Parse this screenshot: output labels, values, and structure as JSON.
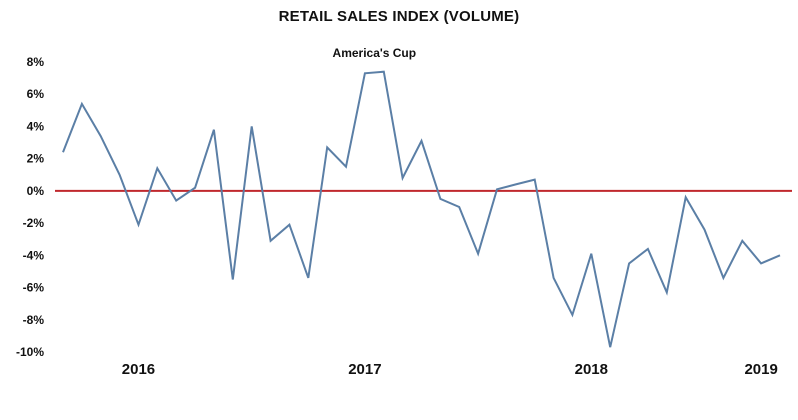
{
  "chart_data": {
    "type": "line",
    "title": "RETAIL SALES INDEX (VOLUME)",
    "xlabel": "",
    "ylabel": "",
    "ylim": [
      -10,
      8
    ],
    "y_ticks": [
      8,
      6,
      4,
      2,
      0,
      -2,
      -4,
      -6,
      -8,
      -10
    ],
    "y_tick_labels": [
      "8%",
      "6%",
      "4%",
      "2%",
      "0%",
      "-2%",
      "-4%",
      "-6%",
      "-8%",
      "-10%"
    ],
    "x_labels": [
      {
        "label": "2016",
        "index": 4
      },
      {
        "label": "2017",
        "index": 16
      },
      {
        "label": "2018",
        "index": 28
      },
      {
        "label": "2019",
        "index": 37
      }
    ],
    "reference_line": {
      "y": 0,
      "color": "#c0282d"
    },
    "line_color": "#5b7fa6",
    "annotation": {
      "text": "America's Cup",
      "index": 16.5
    },
    "values": [
      2.4,
      5.4,
      3.4,
      1.0,
      -2.1,
      1.4,
      -0.6,
      0.2,
      3.8,
      -5.5,
      4.0,
      -3.1,
      -2.1,
      -5.4,
      2.7,
      1.5,
      7.3,
      7.4,
      0.8,
      3.1,
      -0.5,
      -1.0,
      -3.9,
      0.1,
      0.4,
      0.7,
      -5.4,
      -7.7,
      -3.9,
      -9.7,
      -4.5,
      -3.6,
      -6.3,
      -0.4,
      -2.4,
      -5.4,
      -3.1,
      -4.5,
      -4.0
    ]
  }
}
